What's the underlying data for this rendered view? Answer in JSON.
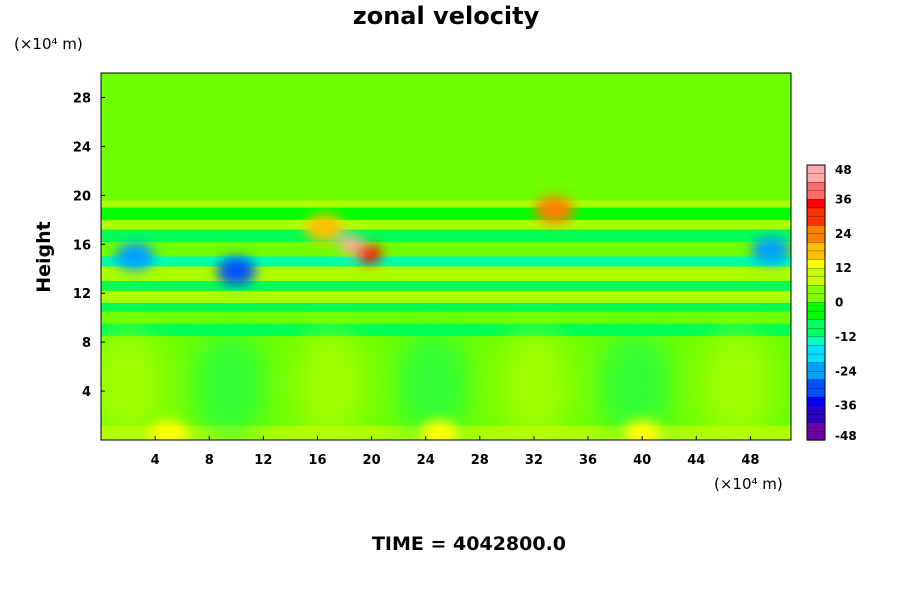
{
  "chart_data": {
    "type": "heatmap",
    "title": "zonal velocity",
    "ylabel": "Height",
    "xunit": "(×10⁴ m)",
    "yunit": "(×10⁴ m)",
    "x_ticks": [
      "4",
      "8",
      "12",
      "16",
      "20",
      "24",
      "28",
      "32",
      "36",
      "40",
      "44",
      "48"
    ],
    "y_ticks": [
      "4",
      "8",
      "12",
      "16",
      "20",
      "24",
      "28"
    ],
    "xlim": [
      0,
      51
    ],
    "ylim": [
      0,
      30
    ],
    "colorbar": {
      "ticks": [
        "48",
        "36",
        "24",
        "12",
        "0",
        "-12",
        "-24",
        "-36",
        "-48"
      ],
      "range": [
        -48,
        48
      ],
      "levels": 32,
      "colors": [
        "#6a00a8",
        "#2a00c8",
        "#0000ff",
        "#0050ff",
        "#00a0ff",
        "#00e0ff",
        "#00ffc0",
        "#00ff60",
        "#00ff00",
        "#80ff00",
        "#c8ff00",
        "#ffff00",
        "#ffc000",
        "#ff8000",
        "#ff3000",
        "#ff0000",
        "#ff6a6a",
        "#ffaaaa"
      ]
    },
    "features": [
      {
        "x": 18.5,
        "y": 16.0,
        "value": 44
      },
      {
        "x": 19.8,
        "y": 15.2,
        "value": 36
      },
      {
        "x": 16.5,
        "y": 17.3,
        "value": 20
      },
      {
        "x": 33.5,
        "y": 18.8,
        "value": 24
      },
      {
        "x": 10.0,
        "y": 13.8,
        "value": -30
      },
      {
        "x": 2.5,
        "y": 15.0,
        "value": -22
      },
      {
        "x": 49.5,
        "y": 15.5,
        "value": -24
      },
      {
        "x": 25.0,
        "y": 0.5,
        "value": 14
      },
      {
        "x": 40.0,
        "y": 0.5,
        "value": 14
      },
      {
        "x": 5.0,
        "y": 0.5,
        "value": 12
      }
    ]
  },
  "footer": {
    "time_label": "TIME = 4042800.0"
  }
}
